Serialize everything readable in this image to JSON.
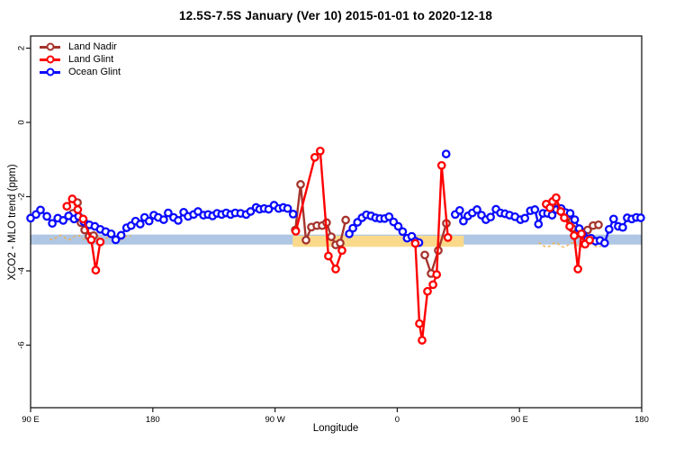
{
  "title": "12.5S-7.5S January (Ver 10)   2015-01-01 to 2020-12-18",
  "legend": [
    {
      "label": "Land Nadir",
      "color": "#A5342C"
    },
    {
      "label": "Land Glint",
      "color": "#FF0000"
    },
    {
      "label": "Ocean Glint",
      "color": "#0A0AFF"
    }
  ],
  "chart_data": {
    "type": "line",
    "title": "12.5S-7.5S January (Ver 10)   2015-01-01 to 2020-12-18",
    "xlabel": "Longitude",
    "ylabel": "XCO2 - MLO trend (ppm)",
    "x_axis": {
      "label": "Longitude",
      "note": "axis position in degrees eastward from 90E; axis wraps around the globe",
      "range": [
        0,
        450
      ],
      "ticks": [
        {
          "t": 0,
          "label": "90 E"
        },
        {
          "t": 90,
          "label": "180"
        },
        {
          "t": 180,
          "label": "90 W"
        },
        {
          "t": 270,
          "label": "0"
        },
        {
          "t": 360,
          "label": "90 E"
        },
        {
          "t": 450,
          "label": "180"
        }
      ]
    },
    "y_axis": {
      "label": "XCO2 - MLO trend (ppm)",
      "range": [
        -7.65,
        2.33
      ],
      "ticks": [
        2,
        0,
        -2,
        -4,
        -6
      ],
      "grid": false
    },
    "highlight_bands": [
      {
        "name": "blue-reference-band",
        "color": "#AFC7E4",
        "t_start": 0,
        "t_end": 450,
        "v_top": -3.02,
        "v_bottom": -3.29
      },
      {
        "name": "yellow-highlight-band",
        "color": "#FAD98B",
        "t_start": 193,
        "t_end": 319,
        "v_top": -3.05,
        "v_bottom": -3.35
      }
    ],
    "dashed_curve_segments": [
      {
        "name": "orange-model-curve-left",
        "color": "#F0AF4C",
        "t_start": 14,
        "t_end": 75,
        "v": -3.1
      },
      {
        "name": "orange-model-curve-right",
        "color": "#F0AF4C",
        "t_start": 374,
        "t_end": 420,
        "v": -3.3
      }
    ],
    "series": [
      {
        "name": "Land Nadir",
        "color": "#A5342C",
        "segments": [
          [
            [
              31.1,
              -2.45
            ],
            [
              34.5,
              -2.16
            ],
            [
              37.1,
              -2.7
            ],
            [
              39.8,
              -2.9
            ],
            [
              43.1,
              -3.07
            ],
            [
              46.4,
              -3.05
            ]
          ],
          [
            [
              194.9,
              -2.9
            ],
            [
              198.8,
              -1.67
            ],
            [
              202.8,
              -3.17
            ],
            [
              206.8,
              -2.82
            ],
            [
              210.8,
              -2.78
            ],
            [
              214.7,
              -2.78
            ],
            [
              218.0,
              -2.7
            ],
            [
              221.4,
              -3.08
            ],
            [
              224.7,
              -3.3
            ],
            [
              228.0,
              -3.25
            ],
            [
              232.0,
              -2.63
            ]
          ],
          [
            [
              290.3,
              -3.57
            ],
            [
              294.9,
              -4.07
            ],
            [
              300.2,
              -3.45
            ],
            [
              306.2,
              -2.72
            ]
          ],
          [
            [
              388.3,
              -2.3
            ],
            [
              391.6,
              -2.42
            ],
            [
              394.9,
              -2.55
            ],
            [
              398.9,
              -2.85
            ],
            [
              402.2,
              -3.0
            ],
            [
              410.2,
              -2.9
            ],
            [
              414.2,
              -2.78
            ],
            [
              418.2,
              -2.76
            ]
          ]
        ]
      },
      {
        "name": "Ocean Glint",
        "color": "#0A0AFF",
        "segments": [
          [
            [
              0,
              -2.58
            ],
            [
              4,
              -2.48
            ],
            [
              7.3,
              -2.36
            ],
            [
              12,
              -2.53
            ],
            [
              16,
              -2.72
            ],
            [
              20,
              -2.58
            ],
            [
              24,
              -2.64
            ],
            [
              28,
              -2.52
            ],
            [
              32,
              -2.6
            ],
            [
              35.3,
              -2.53
            ],
            [
              39.3,
              -2.68
            ],
            [
              43.3,
              -2.76
            ],
            [
              47.3,
              -2.8
            ],
            [
              51.3,
              -2.88
            ],
            [
              55.3,
              -2.94
            ],
            [
              59.3,
              -3.0
            ],
            [
              62.7,
              -3.16
            ],
            [
              66.7,
              -3.04
            ],
            [
              70.7,
              -2.84
            ],
            [
              74,
              -2.78
            ],
            [
              77.3,
              -2.66
            ],
            [
              80.7,
              -2.74
            ],
            [
              84,
              -2.56
            ],
            [
              87.3,
              -2.66
            ],
            [
              90.7,
              -2.5
            ],
            [
              94,
              -2.56
            ],
            [
              98,
              -2.62
            ],
            [
              101.3,
              -2.44
            ],
            [
              105.3,
              -2.56
            ],
            [
              108.7,
              -2.64
            ],
            [
              112.7,
              -2.42
            ],
            [
              116,
              -2.53
            ],
            [
              120,
              -2.48
            ],
            [
              123.3,
              -2.4
            ],
            [
              127.3,
              -2.5
            ],
            [
              130.7,
              -2.48
            ],
            [
              134,
              -2.52
            ],
            [
              137.3,
              -2.45
            ],
            [
              140.7,
              -2.48
            ],
            [
              144,
              -2.44
            ],
            [
              147.3,
              -2.48
            ],
            [
              150.7,
              -2.44
            ],
            [
              154.7,
              -2.45
            ],
            [
              158.7,
              -2.48
            ],
            [
              162,
              -2.4
            ],
            [
              166,
              -2.29
            ],
            [
              168.7,
              -2.34
            ],
            [
              172,
              -2.32
            ],
            [
              175.3,
              -2.34
            ],
            [
              179.3,
              -2.23
            ],
            [
              182.7,
              -2.32
            ],
            [
              186,
              -2.29
            ],
            [
              189.3,
              -2.32
            ],
            [
              193.3,
              -2.47
            ]
          ],
          [
            [
              234.7,
              -3.0
            ],
            [
              237.3,
              -2.85
            ],
            [
              240.7,
              -2.69
            ],
            [
              244,
              -2.57
            ],
            [
              247.3,
              -2.49
            ],
            [
              250.7,
              -2.52
            ],
            [
              254,
              -2.57
            ],
            [
              257.3,
              -2.59
            ],
            [
              260.7,
              -2.59
            ],
            [
              264,
              -2.54
            ],
            [
              267.3,
              -2.68
            ],
            [
              270.7,
              -2.8
            ],
            [
              274,
              -2.94
            ],
            [
              277.3,
              -3.12
            ],
            [
              280.7,
              -3.07
            ],
            [
              283.3,
              -3.2
            ],
            [
              286,
              -3.24
            ]
          ],
          [
            [
              306,
              -0.85
            ]
          ],
          [
            [
              312.7,
              -2.48
            ],
            [
              316,
              -2.37
            ],
            [
              318.7,
              -2.66
            ],
            [
              322,
              -2.52
            ],
            [
              325.3,
              -2.44
            ],
            [
              328.7,
              -2.35
            ],
            [
              332,
              -2.5
            ],
            [
              335.3,
              -2.62
            ],
            [
              338.7,
              -2.55
            ],
            [
              342.7,
              -2.34
            ],
            [
              346,
              -2.44
            ],
            [
              349.3,
              -2.46
            ],
            [
              352.7,
              -2.5
            ],
            [
              356.7,
              -2.54
            ],
            [
              360.7,
              -2.62
            ],
            [
              364,
              -2.58
            ],
            [
              368,
              -2.38
            ],
            [
              371.3,
              -2.35
            ],
            [
              374,
              -2.74
            ],
            [
              377.3,
              -2.45
            ],
            [
              380.7,
              -2.45
            ],
            [
              384,
              -2.5
            ],
            [
              387.3,
              -2.35
            ],
            [
              390.7,
              -2.32
            ],
            [
              394,
              -2.43
            ],
            [
              397.3,
              -2.45
            ],
            [
              400.7,
              -2.62
            ],
            [
              404,
              -2.86
            ],
            [
              406.7,
              -3.02
            ],
            [
              410,
              -3.14
            ],
            [
              412.7,
              -3.12
            ],
            [
              416,
              -3.2
            ],
            [
              419.3,
              -3.18
            ],
            [
              422.7,
              -3.25
            ],
            [
              426,
              -2.88
            ],
            [
              429.3,
              -2.6
            ],
            [
              432.7,
              -2.8
            ],
            [
              436,
              -2.83
            ],
            [
              439.3,
              -2.57
            ],
            [
              442.7,
              -2.6
            ],
            [
              446,
              -2.56
            ],
            [
              449.3,
              -2.57
            ]
          ]
        ]
      },
      {
        "name": "Land Glint",
        "color": "#FF0000",
        "segments": [
          [
            [
              26.7,
              -2.26
            ],
            [
              30.7,
              -2.06
            ],
            [
              34.7,
              -2.35
            ],
            [
              38.7,
              -2.6
            ],
            [
              44.7,
              -3.16
            ],
            [
              48.0,
              -3.98
            ],
            [
              51.3,
              -3.22
            ]
          ],
          [
            [
              195.3,
              -2.93
            ],
            [
              209.3,
              -0.94
            ],
            [
              213.3,
              -0.77
            ],
            [
              219.3,
              -3.6
            ],
            [
              224.7,
              -3.95
            ],
            [
              229.3,
              -3.45
            ]
          ],
          [
            [
              283.3,
              -3.26
            ],
            [
              286.3,
              -5.42
            ],
            [
              288.3,
              -5.87
            ],
            [
              292.3,
              -4.55
            ],
            [
              296.3,
              -4.37
            ],
            [
              299.0,
              -4.1
            ],
            [
              302.7,
              -1.16
            ],
            [
              307.3,
              -3.1
            ]
          ],
          [
            [
              379.7,
              -2.2
            ],
            [
              382.4,
              -2.3
            ],
            [
              384.4,
              -2.13
            ],
            [
              387.0,
              -2.03
            ],
            [
              390.4,
              -2.4
            ],
            [
              393.0,
              -2.57
            ],
            [
              397.0,
              -2.8
            ],
            [
              400.3,
              -3.05
            ],
            [
              403.0,
              -3.95
            ],
            [
              405.6,
              -3.0
            ],
            [
              408.3,
              -3.28
            ],
            [
              411.6,
              -3.17
            ]
          ]
        ]
      }
    ],
    "legend_position": "top-left"
  }
}
